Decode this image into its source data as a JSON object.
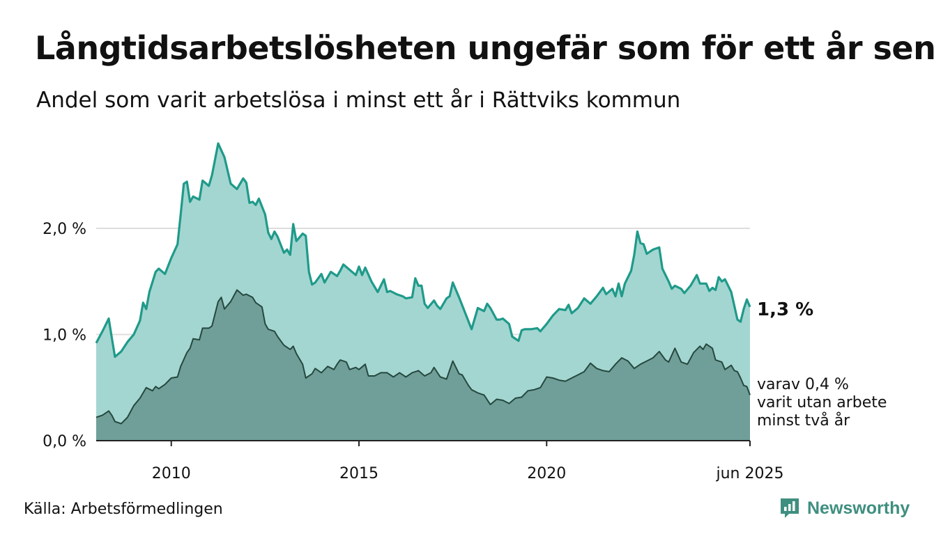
{
  "title": "Långtidsarbetslösheten ungefär som för ett år sen",
  "subtitle": "Andel som varit arbetslösa i minst ett år i Rättviks kommun",
  "source": "Källa: Arbetsförmedlingen",
  "brand": "Newsworthy",
  "annotations": {
    "total_label": "1,3 %",
    "sub_label_lines": [
      "varav 0,4 %",
      "varit utan arbete",
      "minst två år"
    ]
  },
  "colors": {
    "total_line": "#1f9a8a",
    "total_fill": "#a4d6d1",
    "sub_line": "#25483f",
    "sub_fill": "#6f9f98",
    "gridline": "#dddddd",
    "brand": "#3f8f80"
  },
  "chart_data": {
    "type": "area",
    "x_unit": "month",
    "x_start": "2008-01",
    "x_end": "2025-06",
    "ylim": [
      0,
      2.8
    ],
    "yticks": [
      0,
      1,
      2
    ],
    "ytick_labels": [
      "0,0 %",
      "1,0 %",
      "2,0 %"
    ],
    "xticks": [
      "2010-01",
      "2015-01",
      "2020-01",
      "2025-06"
    ],
    "xtick_labels": [
      "2010",
      "2015",
      "2020",
      "jun 2025"
    ],
    "grid": true,
    "series": [
      {
        "key": "total",
        "points": [
          [
            "2008-01",
            0.92
          ],
          [
            "2008-03",
            1.03
          ],
          [
            "2008-05",
            1.15
          ],
          [
            "2008-06",
            0.97
          ],
          [
            "2008-07",
            0.79
          ],
          [
            "2008-09",
            0.84
          ],
          [
            "2008-11",
            0.93
          ],
          [
            "2009-01",
            1.0
          ],
          [
            "2009-03",
            1.13
          ],
          [
            "2009-04",
            1.3
          ],
          [
            "2009-05",
            1.24
          ],
          [
            "2009-06",
            1.4
          ],
          [
            "2009-08",
            1.59
          ],
          [
            "2009-09",
            1.62
          ],
          [
            "2009-11",
            1.57
          ],
          [
            "2010-01",
            1.72
          ],
          [
            "2010-03",
            1.85
          ],
          [
            "2010-04",
            2.13
          ],
          [
            "2010-05",
            2.42
          ],
          [
            "2010-06",
            2.44
          ],
          [
            "2010-07",
            2.25
          ],
          [
            "2010-08",
            2.3
          ],
          [
            "2010-10",
            2.27
          ],
          [
            "2010-11",
            2.45
          ],
          [
            "2011-01",
            2.4
          ],
          [
            "2011-02",
            2.5
          ],
          [
            "2011-04",
            2.8
          ],
          [
            "2011-06",
            2.67
          ],
          [
            "2011-08",
            2.42
          ],
          [
            "2011-10",
            2.37
          ],
          [
            "2011-12",
            2.47
          ],
          [
            "2012-01",
            2.43
          ],
          [
            "2012-02",
            2.24
          ],
          [
            "2012-03",
            2.25
          ],
          [
            "2012-04",
            2.22
          ],
          [
            "2012-05",
            2.28
          ],
          [
            "2012-07",
            2.13
          ],
          [
            "2012-08",
            1.96
          ],
          [
            "2012-09",
            1.9
          ],
          [
            "2012-10",
            1.97
          ],
          [
            "2012-11",
            1.92
          ],
          [
            "2013-01",
            1.77
          ],
          [
            "2013-02",
            1.8
          ],
          [
            "2013-03",
            1.75
          ],
          [
            "2013-04",
            2.04
          ],
          [
            "2013-05",
            1.88
          ],
          [
            "2013-07",
            1.95
          ],
          [
            "2013-08",
            1.93
          ],
          [
            "2013-09",
            1.59
          ],
          [
            "2013-10",
            1.47
          ],
          [
            "2013-11",
            1.49
          ],
          [
            "2014-01",
            1.57
          ],
          [
            "2014-02",
            1.49
          ],
          [
            "2014-04",
            1.59
          ],
          [
            "2014-06",
            1.55
          ],
          [
            "2014-07",
            1.6
          ],
          [
            "2014-08",
            1.66
          ],
          [
            "2014-10",
            1.61
          ],
          [
            "2014-12",
            1.56
          ],
          [
            "2015-01",
            1.64
          ],
          [
            "2015-02",
            1.56
          ],
          [
            "2015-03",
            1.63
          ],
          [
            "2015-05",
            1.5
          ],
          [
            "2015-07",
            1.4
          ],
          [
            "2015-09",
            1.52
          ],
          [
            "2015-10",
            1.4
          ],
          [
            "2015-11",
            1.41
          ],
          [
            "2016-01",
            1.38
          ],
          [
            "2016-03",
            1.36
          ],
          [
            "2016-04",
            1.34
          ],
          [
            "2016-06",
            1.35
          ],
          [
            "2016-07",
            1.53
          ],
          [
            "2016-08",
            1.46
          ],
          [
            "2016-09",
            1.46
          ],
          [
            "2016-10",
            1.29
          ],
          [
            "2016-11",
            1.25
          ],
          [
            "2017-01",
            1.32
          ],
          [
            "2017-02",
            1.27
          ],
          [
            "2017-03",
            1.24
          ],
          [
            "2017-05",
            1.34
          ],
          [
            "2017-06",
            1.36
          ],
          [
            "2017-07",
            1.49
          ],
          [
            "2017-09",
            1.35
          ],
          [
            "2017-11",
            1.2
          ],
          [
            "2018-01",
            1.05
          ],
          [
            "2018-03",
            1.25
          ],
          [
            "2018-05",
            1.22
          ],
          [
            "2018-06",
            1.29
          ],
          [
            "2018-07",
            1.25
          ],
          [
            "2018-09",
            1.14
          ],
          [
            "2018-10",
            1.14
          ],
          [
            "2018-11",
            1.15
          ],
          [
            "2019-01",
            1.1
          ],
          [
            "2019-02",
            0.98
          ],
          [
            "2019-04",
            0.94
          ],
          [
            "2019-05",
            1.04
          ],
          [
            "2019-06",
            1.05
          ],
          [
            "2019-08",
            1.05
          ],
          [
            "2019-10",
            1.06
          ],
          [
            "2019-11",
            1.03
          ],
          [
            "2020-01",
            1.1
          ],
          [
            "2020-03",
            1.18
          ],
          [
            "2020-05",
            1.24
          ],
          [
            "2020-07",
            1.23
          ],
          [
            "2020-08",
            1.28
          ],
          [
            "2020-09",
            1.2
          ],
          [
            "2020-11",
            1.25
          ],
          [
            "2021-01",
            1.34
          ],
          [
            "2021-03",
            1.29
          ],
          [
            "2021-05",
            1.36
          ],
          [
            "2021-07",
            1.44
          ],
          [
            "2021-08",
            1.38
          ],
          [
            "2021-10",
            1.43
          ],
          [
            "2021-11",
            1.36
          ],
          [
            "2021-12",
            1.48
          ],
          [
            "2022-01",
            1.36
          ],
          [
            "2022-02",
            1.48
          ],
          [
            "2022-04",
            1.6
          ],
          [
            "2022-05",
            1.75
          ],
          [
            "2022-06",
            1.97
          ],
          [
            "2022-07",
            1.86
          ],
          [
            "2022-08",
            1.85
          ],
          [
            "2022-09",
            1.76
          ],
          [
            "2022-11",
            1.8
          ],
          [
            "2023-01",
            1.82
          ],
          [
            "2023-02",
            1.62
          ],
          [
            "2023-04",
            1.5
          ],
          [
            "2023-05",
            1.43
          ],
          [
            "2023-06",
            1.46
          ],
          [
            "2023-08",
            1.43
          ],
          [
            "2023-09",
            1.39
          ],
          [
            "2023-11",
            1.46
          ],
          [
            "2024-01",
            1.56
          ],
          [
            "2024-02",
            1.48
          ],
          [
            "2024-04",
            1.48
          ],
          [
            "2024-05",
            1.41
          ],
          [
            "2024-06",
            1.44
          ],
          [
            "2024-07",
            1.42
          ],
          [
            "2024-08",
            1.54
          ],
          [
            "2024-09",
            1.5
          ],
          [
            "2024-10",
            1.52
          ],
          [
            "2024-12",
            1.4
          ],
          [
            "2025-02",
            1.14
          ],
          [
            "2025-03",
            1.12
          ],
          [
            "2025-04",
            1.24
          ],
          [
            "2025-05",
            1.33
          ],
          [
            "2025-06",
            1.26
          ]
        ]
      },
      {
        "key": "sub",
        "points": [
          [
            "2008-01",
            0.22
          ],
          [
            "2008-03",
            0.24
          ],
          [
            "2008-05",
            0.28
          ],
          [
            "2008-06",
            0.24
          ],
          [
            "2008-07",
            0.18
          ],
          [
            "2008-09",
            0.16
          ],
          [
            "2008-11",
            0.22
          ],
          [
            "2009-01",
            0.33
          ],
          [
            "2009-03",
            0.4
          ],
          [
            "2009-05",
            0.5
          ],
          [
            "2009-07",
            0.47
          ],
          [
            "2009-08",
            0.51
          ],
          [
            "2009-09",
            0.49
          ],
          [
            "2009-11",
            0.53
          ],
          [
            "2010-01",
            0.59
          ],
          [
            "2010-03",
            0.6
          ],
          [
            "2010-04",
            0.7
          ],
          [
            "2010-06",
            0.83
          ],
          [
            "2010-07",
            0.87
          ],
          [
            "2010-08",
            0.96
          ],
          [
            "2010-10",
            0.95
          ],
          [
            "2010-11",
            1.06
          ],
          [
            "2011-01",
            1.06
          ],
          [
            "2011-02",
            1.08
          ],
          [
            "2011-04",
            1.31
          ],
          [
            "2011-05",
            1.35
          ],
          [
            "2011-06",
            1.24
          ],
          [
            "2011-08",
            1.31
          ],
          [
            "2011-10",
            1.42
          ],
          [
            "2011-12",
            1.37
          ],
          [
            "2012-01",
            1.38
          ],
          [
            "2012-03",
            1.35
          ],
          [
            "2012-04",
            1.3
          ],
          [
            "2012-05",
            1.28
          ],
          [
            "2012-06",
            1.26
          ],
          [
            "2012-07",
            1.1
          ],
          [
            "2012-08",
            1.05
          ],
          [
            "2012-10",
            1.03
          ],
          [
            "2012-11",
            0.98
          ],
          [
            "2013-01",
            0.9
          ],
          [
            "2013-03",
            0.86
          ],
          [
            "2013-04",
            0.89
          ],
          [
            "2013-05",
            0.82
          ],
          [
            "2013-06",
            0.77
          ],
          [
            "2013-07",
            0.72
          ],
          [
            "2013-08",
            0.59
          ],
          [
            "2013-10",
            0.63
          ],
          [
            "2013-11",
            0.68
          ],
          [
            "2014-01",
            0.64
          ],
          [
            "2014-03",
            0.7
          ],
          [
            "2014-05",
            0.67
          ],
          [
            "2014-06",
            0.72
          ],
          [
            "2014-07",
            0.76
          ],
          [
            "2014-09",
            0.74
          ],
          [
            "2014-10",
            0.67
          ],
          [
            "2014-12",
            0.69
          ],
          [
            "2015-01",
            0.67
          ],
          [
            "2015-03",
            0.72
          ],
          [
            "2015-04",
            0.61
          ],
          [
            "2015-06",
            0.61
          ],
          [
            "2015-08",
            0.64
          ],
          [
            "2015-10",
            0.64
          ],
          [
            "2015-12",
            0.6
          ],
          [
            "2016-02",
            0.64
          ],
          [
            "2016-04",
            0.6
          ],
          [
            "2016-06",
            0.64
          ],
          [
            "2016-08",
            0.66
          ],
          [
            "2016-10",
            0.61
          ],
          [
            "2016-12",
            0.64
          ],
          [
            "2017-01",
            0.69
          ],
          [
            "2017-03",
            0.6
          ],
          [
            "2017-05",
            0.58
          ],
          [
            "2017-07",
            0.75
          ],
          [
            "2017-09",
            0.63
          ],
          [
            "2017-10",
            0.62
          ],
          [
            "2017-12",
            0.52
          ],
          [
            "2018-01",
            0.48
          ],
          [
            "2018-03",
            0.45
          ],
          [
            "2018-05",
            0.43
          ],
          [
            "2018-07",
            0.34
          ],
          [
            "2018-09",
            0.39
          ],
          [
            "2018-11",
            0.38
          ],
          [
            "2019-01",
            0.35
          ],
          [
            "2019-03",
            0.4
          ],
          [
            "2019-05",
            0.41
          ],
          [
            "2019-07",
            0.47
          ],
          [
            "2019-09",
            0.48
          ],
          [
            "2019-11",
            0.5
          ],
          [
            "2020-01",
            0.6
          ],
          [
            "2020-03",
            0.59
          ],
          [
            "2020-05",
            0.57
          ],
          [
            "2020-07",
            0.56
          ],
          [
            "2020-09",
            0.59
          ],
          [
            "2020-11",
            0.62
          ],
          [
            "2021-01",
            0.65
          ],
          [
            "2021-03",
            0.73
          ],
          [
            "2021-05",
            0.68
          ],
          [
            "2021-07",
            0.66
          ],
          [
            "2021-09",
            0.65
          ],
          [
            "2021-11",
            0.72
          ],
          [
            "2022-01",
            0.78
          ],
          [
            "2022-03",
            0.75
          ],
          [
            "2022-05",
            0.68
          ],
          [
            "2022-07",
            0.72
          ],
          [
            "2022-09",
            0.75
          ],
          [
            "2022-11",
            0.78
          ],
          [
            "2023-01",
            0.84
          ],
          [
            "2023-03",
            0.76
          ],
          [
            "2023-04",
            0.74
          ],
          [
            "2023-06",
            0.87
          ],
          [
            "2023-08",
            0.74
          ],
          [
            "2023-10",
            0.72
          ],
          [
            "2023-12",
            0.83
          ],
          [
            "2024-02",
            0.89
          ],
          [
            "2024-03",
            0.86
          ],
          [
            "2024-04",
            0.91
          ],
          [
            "2024-06",
            0.87
          ],
          [
            "2024-07",
            0.76
          ],
          [
            "2024-09",
            0.74
          ],
          [
            "2024-10",
            0.67
          ],
          [
            "2024-12",
            0.71
          ],
          [
            "2025-01",
            0.66
          ],
          [
            "2025-02",
            0.65
          ],
          [
            "2025-03",
            0.59
          ],
          [
            "2025-04",
            0.52
          ],
          [
            "2025-05",
            0.51
          ],
          [
            "2025-06",
            0.43
          ]
        ]
      }
    ]
  }
}
